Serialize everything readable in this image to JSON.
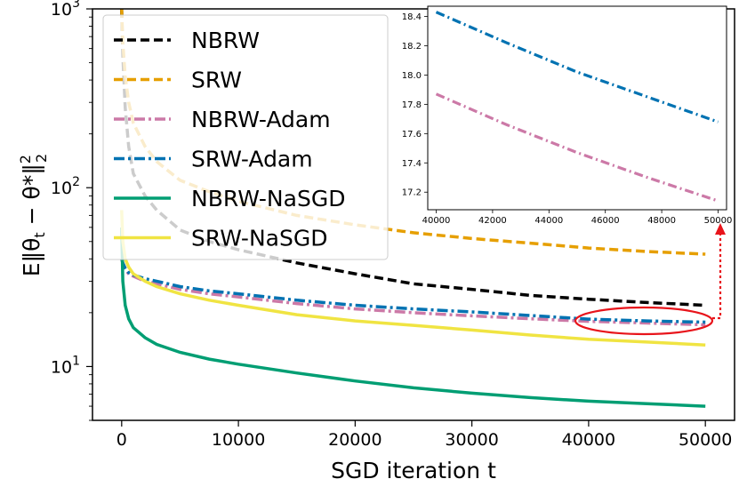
{
  "chart_data": {
    "type": "line",
    "title": "",
    "xlabel": "SGD iteration t",
    "ylabel": "E‖θ",
    "ylabel_sub": "t",
    "ylabel_mid": " − θ*‖",
    "ylabel_sup": "2",
    "ylabel_sub2": "2",
    "yscale": "log",
    "xlim": [
      -2500,
      52500
    ],
    "ylim": [
      5,
      1000
    ],
    "x_ticks": [
      "0",
      "10000",
      "20000",
      "30000",
      "40000",
      "50000"
    ],
    "y_ticks": [
      {
        "base": "10",
        "exp": "1",
        "value": 10
      },
      {
        "base": "10",
        "exp": "2",
        "value": 100
      },
      {
        "base": "10",
        "exp": "3",
        "value": 1000
      }
    ],
    "legend_position": "top-left",
    "series": [
      {
        "name": "NBRW",
        "color": "#000000",
        "dash": "dashed",
        "x": [
          0,
          100,
          300,
          600,
          1000,
          2000,
          3000,
          5000,
          7500,
          10000,
          15000,
          20000,
          25000,
          30000,
          35000,
          40000,
          45000,
          50000
        ],
        "y": [
          1000,
          550,
          280,
          170,
          120,
          90,
          75,
          58,
          50,
          45,
          38,
          33,
          29,
          27,
          25,
          23.8,
          22.8,
          22
        ]
      },
      {
        "name": "SRW",
        "color": "#E69F00",
        "dash": "dashed",
        "x": [
          0,
          100,
          300,
          600,
          1000,
          2000,
          3000,
          5000,
          7500,
          10000,
          15000,
          20000,
          25000,
          30000,
          35000,
          40000,
          45000,
          50000
        ],
        "y": [
          1000,
          650,
          420,
          300,
          230,
          170,
          140,
          110,
          95,
          84,
          70,
          62,
          56,
          52,
          49,
          46,
          44,
          42.5
        ]
      },
      {
        "name": "NBRW-Adam",
        "color": "#CC79A7",
        "dash": "dashdot",
        "x": [
          0,
          100,
          300,
          600,
          1000,
          2000,
          3000,
          5000,
          7500,
          10000,
          15000,
          20000,
          25000,
          30000,
          35000,
          40000,
          45000,
          50000
        ],
        "y": [
          40,
          38,
          35,
          33,
          32,
          30,
          29,
          27,
          25.5,
          24.5,
          22.5,
          21,
          20,
          19.2,
          18.5,
          17.9,
          17.5,
          17.1
        ]
      },
      {
        "name": "SRW-Adam",
        "color": "#0072B2",
        "dash": "dashdot",
        "x": [
          0,
          100,
          300,
          600,
          1000,
          2000,
          3000,
          5000,
          7500,
          10000,
          15000,
          20000,
          25000,
          30000,
          35000,
          40000,
          45000,
          50000
        ],
        "y": [
          40,
          38,
          35.5,
          33.5,
          32.5,
          31,
          30,
          28,
          26.5,
          25.5,
          23.5,
          22,
          21,
          20.2,
          19.3,
          18.4,
          18,
          17.7
        ]
      },
      {
        "name": "NBRW-NaSGD",
        "color": "#009E73",
        "dash": "solid",
        "x": [
          0,
          100,
          300,
          600,
          1000,
          2000,
          3000,
          5000,
          7500,
          10000,
          15000,
          20000,
          25000,
          30000,
          35000,
          40000,
          45000,
          50000
        ],
        "y": [
          60,
          30,
          22,
          18.5,
          16.5,
          14.5,
          13.3,
          12,
          11,
          10.3,
          9.2,
          8.3,
          7.6,
          7.1,
          6.7,
          6.4,
          6.2,
          6
        ]
      },
      {
        "name": "SRW-NaSGD",
        "color": "#F0E442",
        "dash": "solid",
        "x": [
          0,
          100,
          300,
          600,
          1000,
          2000,
          3000,
          5000,
          7500,
          10000,
          15000,
          20000,
          25000,
          30000,
          35000,
          40000,
          45000,
          50000
        ],
        "y": [
          75,
          50,
          40,
          36,
          33,
          30,
          28,
          25.5,
          23.5,
          22,
          19.5,
          18,
          17,
          16,
          15,
          14.2,
          13.7,
          13.2
        ]
      }
    ],
    "inset": {
      "xlim": [
        39700,
        50300
      ],
      "ylim": [
        17.08,
        18.47
      ],
      "x_ticks": [
        "40000",
        "42000",
        "44000",
        "46000",
        "48000",
        "50000"
      ],
      "y_ticks": [
        "17.2",
        "17.4",
        "17.6",
        "17.8",
        "18.0",
        "18.2",
        "18.4"
      ],
      "series": [
        {
          "name": "SRW-Adam",
          "color": "#0072B2",
          "dash": "dashdot",
          "x": [
            40000,
            42500,
            45000,
            47500,
            50000
          ],
          "y": [
            18.43,
            18.22,
            18.02,
            17.85,
            17.68
          ]
        },
        {
          "name": "NBRW-Adam",
          "color": "#CC79A7",
          "dash": "dashdot",
          "x": [
            40000,
            42500,
            45000,
            47500,
            50000
          ],
          "y": [
            17.87,
            17.66,
            17.47,
            17.3,
            17.14
          ]
        }
      ]
    }
  }
}
